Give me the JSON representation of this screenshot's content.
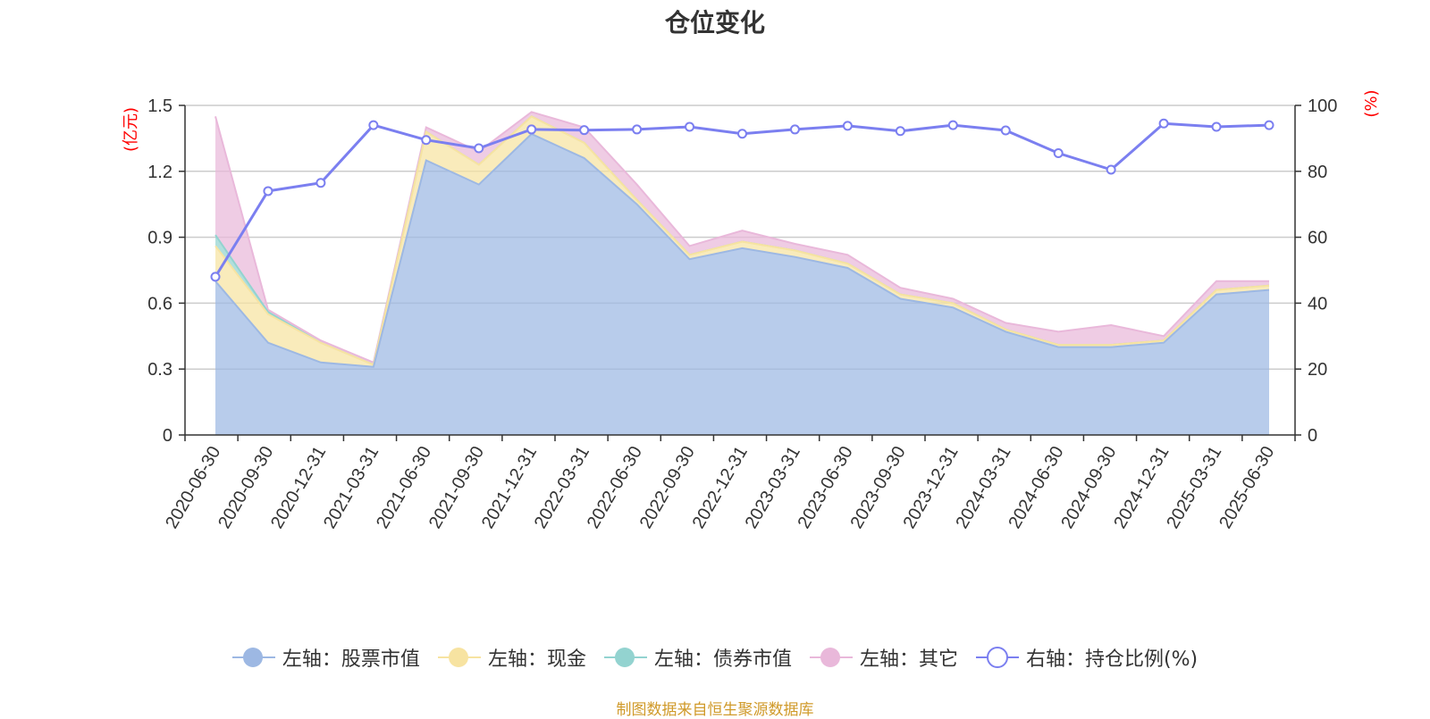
{
  "title": "仓位变化",
  "source_note": "制图数据来自恒生聚源数据库",
  "chart_data": {
    "type": "area",
    "title": "仓位变化",
    "categories": [
      "2020-06-30",
      "2020-09-30",
      "2020-12-31",
      "2021-03-31",
      "2021-06-30",
      "2021-09-30",
      "2021-12-31",
      "2022-03-31",
      "2022-06-30",
      "2022-09-30",
      "2022-12-31",
      "2023-03-31",
      "2023-06-30",
      "2023-09-30",
      "2023-12-31",
      "2024-03-31",
      "2024-06-30",
      "2024-09-30",
      "2024-12-31",
      "2025-03-31",
      "2025-06-30"
    ],
    "left_axis": {
      "unit": "(亿元)",
      "ylim": [
        0,
        1.5
      ],
      "ticks": [
        "0",
        "0.3",
        "0.6",
        "0.9",
        "1.2",
        "1.5"
      ]
    },
    "right_axis": {
      "unit": "(%)",
      "ylim": [
        0,
        100
      ],
      "ticks": [
        "0",
        "20",
        "40",
        "60",
        "80",
        "100"
      ]
    },
    "grid": true,
    "legend_position": "bottom",
    "series": [
      {
        "name": "左轴：股票市值",
        "axis": "left",
        "stack": true,
        "color": "#9db8e3",
        "values": [
          0.7,
          0.42,
          0.33,
          0.31,
          1.25,
          1.14,
          1.37,
          1.26,
          1.05,
          0.8,
          0.85,
          0.81,
          0.76,
          0.62,
          0.58,
          0.47,
          0.4,
          0.4,
          0.42,
          0.64,
          0.66
        ]
      },
      {
        "name": "左轴：现金",
        "axis": "left",
        "stack": true,
        "color": "#f7e3a1",
        "values": [
          0.16,
          0.13,
          0.09,
          0.01,
          0.13,
          0.09,
          0.08,
          0.07,
          0.02,
          0.02,
          0.03,
          0.03,
          0.02,
          0.02,
          0.02,
          0.01,
          0.01,
          0.01,
          0.01,
          0.02,
          0.02
        ]
      },
      {
        "name": "左轴：债券市值",
        "axis": "left",
        "stack": true,
        "color": "#93d3d0",
        "values": [
          0.05,
          0.01,
          0,
          0,
          0,
          0,
          0,
          0,
          0,
          0,
          0,
          0,
          0,
          0,
          0,
          0,
          0,
          0,
          0,
          0,
          0
        ]
      },
      {
        "name": "左轴：其它",
        "axis": "left",
        "stack": true,
        "color": "#e9b8da",
        "values": [
          0.54,
          0.01,
          0.01,
          0.01,
          0.02,
          0.06,
          0.02,
          0.07,
          0.07,
          0.04,
          0.05,
          0.03,
          0.04,
          0.03,
          0.02,
          0.03,
          0.06,
          0.09,
          0.02,
          0.04,
          0.02
        ]
      },
      {
        "name": "右轴：持仓比例(%)",
        "axis": "right",
        "type": "line",
        "color": "#7b7ff0",
        "values": [
          48,
          74,
          76.5,
          94,
          89.5,
          87,
          92.7,
          92.5,
          92.7,
          93.5,
          91.4,
          92.7,
          93.8,
          92.2,
          94,
          92.4,
          85.5,
          80.5,
          94.5,
          93.5,
          94
        ]
      }
    ]
  }
}
